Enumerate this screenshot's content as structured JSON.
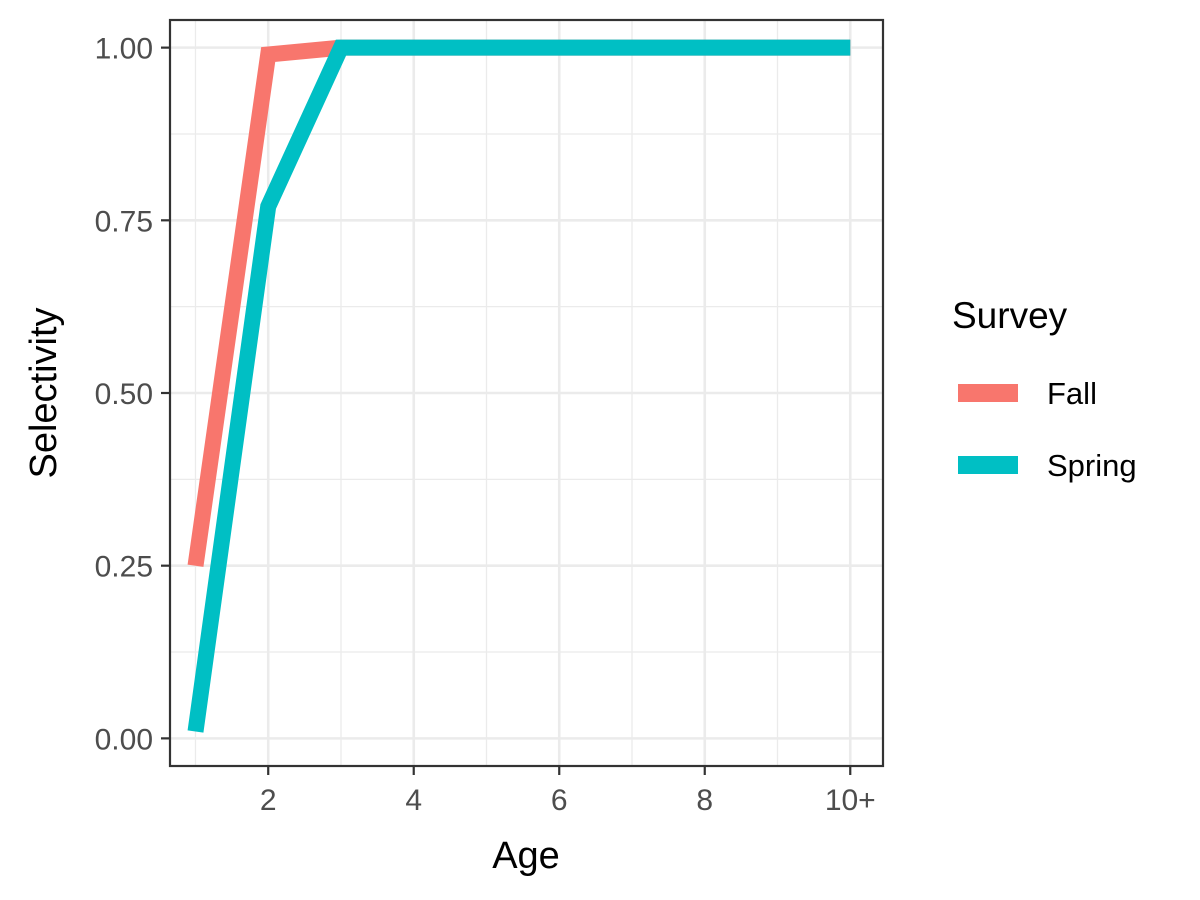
{
  "chart_data": {
    "type": "line",
    "xlabel": "Age",
    "ylabel": "Selectivity",
    "x": [
      1,
      2,
      3,
      4,
      5,
      6,
      7,
      8,
      9,
      10
    ],
    "xlim": [
      0.65,
      10.45
    ],
    "ylim": [
      -0.04,
      1.04
    ],
    "x_ticks": [
      2,
      4,
      6,
      8,
      10
    ],
    "x_tick_labels": [
      "2",
      "4",
      "6",
      "8",
      "10+"
    ],
    "y_ticks": [
      0.0,
      0.25,
      0.5,
      0.75,
      1.0
    ],
    "y_tick_labels": [
      "0.00",
      "0.25",
      "0.50",
      "0.75",
      "1.00"
    ],
    "grid": true,
    "legend": {
      "title": "Survey",
      "position": "right"
    },
    "series": [
      {
        "name": "Fall",
        "color": "#F8766D",
        "values": [
          0.25,
          0.99,
          1.0,
          1.0,
          1.0,
          1.0,
          1.0,
          1.0,
          1.0,
          1.0
        ]
      },
      {
        "name": "Spring",
        "color": "#00BFC4",
        "values": [
          0.01,
          0.77,
          1.0,
          1.0,
          1.0,
          1.0,
          1.0,
          1.0,
          1.0,
          1.0
        ]
      }
    ]
  }
}
